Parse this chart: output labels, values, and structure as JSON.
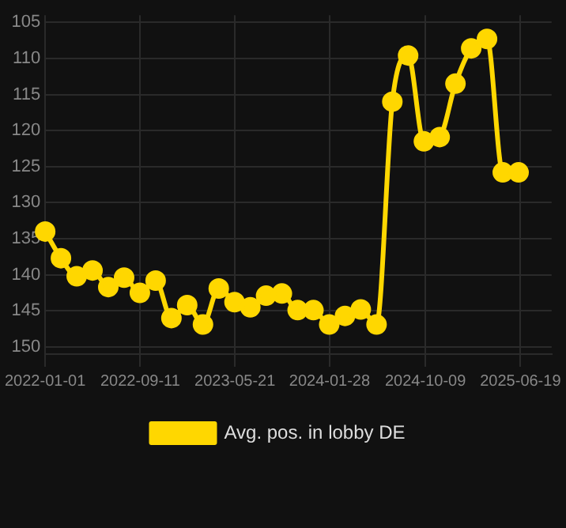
{
  "chart_data": {
    "type": "line",
    "x": [
      "2022-01-01",
      "2022-02-12",
      "2022-03-26",
      "2022-05-07",
      "2022-06-18",
      "2022-07-30",
      "2022-09-10",
      "2022-10-22",
      "2022-12-03",
      "2023-01-14",
      "2023-02-25",
      "2023-04-08",
      "2023-05-20",
      "2023-07-01",
      "2023-08-12",
      "2023-09-23",
      "2023-11-04",
      "2023-12-16",
      "2024-01-27",
      "2024-03-09",
      "2024-04-20",
      "2024-06-01",
      "2024-07-13",
      "2024-08-24",
      "2024-10-05",
      "2024-11-16",
      "2024-12-28",
      "2025-02-08",
      "2025-03-22",
      "2025-05-03",
      "2025-06-14"
    ],
    "series": [
      {
        "name": "Avg. pos. in lobby DE",
        "color": "#ffd700",
        "values": [
          134.0,
          137.7,
          140.2,
          139.4,
          141.7,
          140.4,
          142.5,
          140.8,
          146.0,
          144.2,
          146.9,
          141.9,
          143.8,
          144.5,
          142.9,
          142.6,
          144.9,
          144.9,
          146.9,
          145.7,
          144.8,
          146.9,
          116.0,
          109.6,
          121.5,
          120.9,
          113.5,
          108.6,
          107.3,
          125.8,
          125.8
        ]
      }
    ],
    "xlim": [
      "2022-01-01",
      "2025-09-10"
    ],
    "xticks": [
      "2022-01-01",
      "2022-09-11",
      "2023-05-21",
      "2024-01-28",
      "2024-10-09",
      "2025-06-19"
    ],
    "ylim": [
      151,
      104
    ],
    "yticks": [
      105,
      110,
      115,
      120,
      125,
      130,
      135,
      140,
      145,
      150
    ],
    "grid": true,
    "legend": "bottom",
    "marker": "circle",
    "line_style": "solid"
  }
}
